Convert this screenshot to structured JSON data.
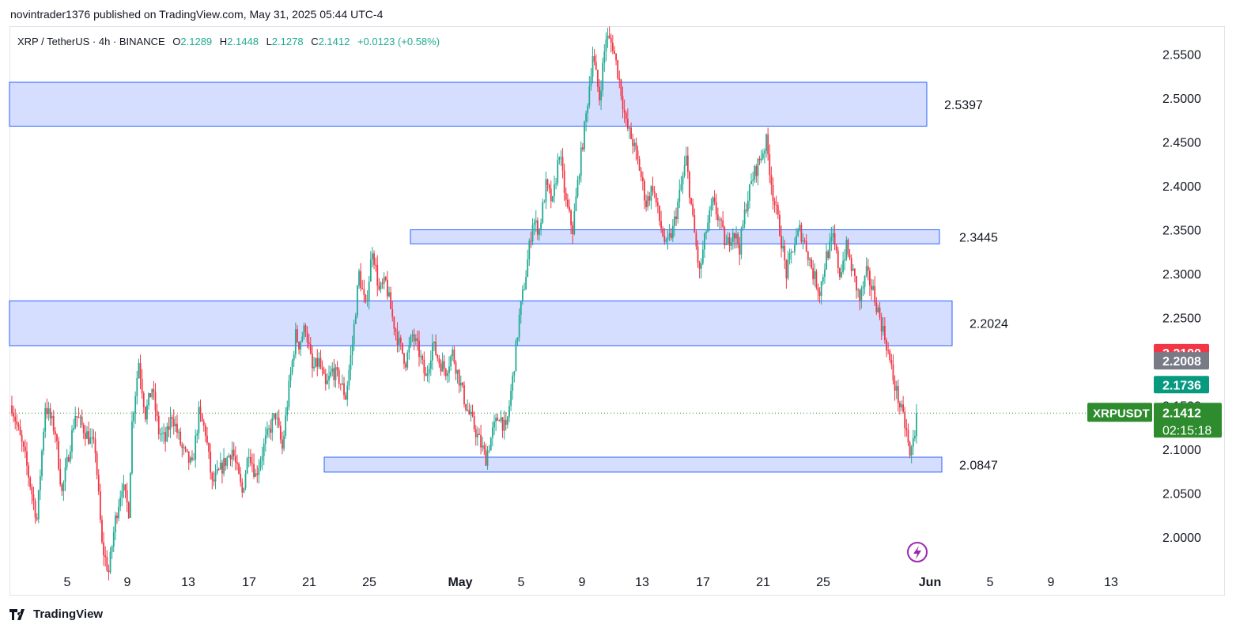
{
  "header": {
    "published": "novintrader1376 published on TradingView.com, May 31, 2025 05:44 UTC-4"
  },
  "symbol_bar": {
    "symbol": "XRP / TetherUS · 4h · BINANCE",
    "o_label": "O",
    "o_value": "2.1289",
    "h_label": "H",
    "h_value": "2.1448",
    "l_label": "L",
    "l_value": "2.1278",
    "c_label": "C",
    "c_value": "2.1412",
    "change": "+0.0123 (+0.58%)"
  },
  "footer": {
    "brand": "TradingView"
  },
  "colors": {
    "up": "#22ab94",
    "down": "#f23645",
    "zone_fill": "#d6deff",
    "zone_border": "#2962ff",
    "last_price": "#2e8b2e"
  },
  "chart_data": {
    "type": "candlestick",
    "symbol": "XRPUSDT",
    "timeframe": "4h",
    "y_axis": {
      "ticks": [
        "2.5500",
        "2.5000",
        "2.4500",
        "2.4000",
        "2.3500",
        "2.3000",
        "2.2500",
        "2.2000",
        "2.1500",
        "2.1000",
        "2.0500",
        "2.0000"
      ],
      "tick_values": [
        2.55,
        2.5,
        2.45,
        2.4,
        2.35,
        2.3,
        2.25,
        2.2,
        2.15,
        2.1,
        2.05,
        2.0
      ],
      "range": [
        1.97,
        2.58
      ]
    },
    "x_axis": {
      "labels": [
        "5",
        "9",
        "13",
        "17",
        "21",
        "25",
        "May",
        "5",
        "9",
        "13",
        "17",
        "21",
        "25",
        "Jun",
        "5",
        "9",
        "13"
      ]
    },
    "zones": [
      {
        "label": "2.5397",
        "top": 2.518,
        "bottom": 2.468
      },
      {
        "label": "2.3445",
        "top": 2.35,
        "bottom": 2.334
      },
      {
        "label": "2.2024",
        "top": 2.269,
        "bottom": 2.218
      },
      {
        "label": "2.0847",
        "top": 2.091,
        "bottom": 2.074
      }
    ],
    "price_tags": [
      {
        "text": "2.2100",
        "value": 2.21,
        "color": "#f23645"
      },
      {
        "text": "2.2008",
        "value": 2.2008,
        "color": "#787b86"
      },
      {
        "text": "2.1736",
        "value": 2.1736,
        "color": "#089981"
      }
    ],
    "last_price": {
      "symbol_label": "XRPUSDT",
      "price": "2.1412",
      "value": 2.1412,
      "countdown": "02:15:18"
    },
    "path": [
      [
        0,
        2.15
      ],
      [
        8,
        2.09
      ],
      [
        15,
        2.02
      ],
      [
        20,
        2.15
      ],
      [
        26,
        2.12
      ],
      [
        30,
        2.05
      ],
      [
        38,
        2.14
      ],
      [
        44,
        2.12
      ],
      [
        50,
        2.1
      ],
      [
        54,
        1.99
      ],
      [
        58,
        1.96
      ],
      [
        62,
        2.02
      ],
      [
        66,
        2.06
      ],
      [
        70,
        2.03
      ],
      [
        72,
        2.13
      ],
      [
        76,
        2.2
      ],
      [
        80,
        2.14
      ],
      [
        84,
        2.17
      ],
      [
        88,
        2.12
      ],
      [
        92,
        2.11
      ],
      [
        96,
        2.14
      ],
      [
        102,
        2.1
      ],
      [
        108,
        2.08
      ],
      [
        112,
        2.14
      ],
      [
        116,
        2.12
      ],
      [
        120,
        2.06
      ],
      [
        126,
        2.08
      ],
      [
        132,
        2.1
      ],
      [
        138,
        2.05
      ],
      [
        142,
        2.1
      ],
      [
        146,
        2.07
      ],
      [
        152,
        2.11
      ],
      [
        158,
        2.14
      ],
      [
        162,
        2.1
      ],
      [
        166,
        2.17
      ],
      [
        170,
        2.23
      ],
      [
        172,
        2.22
      ],
      [
        176,
        2.24
      ],
      [
        180,
        2.19
      ],
      [
        184,
        2.2
      ],
      [
        188,
        2.17
      ],
      [
        192,
        2.19
      ],
      [
        196,
        2.18
      ],
      [
        200,
        2.16
      ],
      [
        204,
        2.22
      ],
      [
        208,
        2.3
      ],
      [
        212,
        2.26
      ],
      [
        216,
        2.33
      ],
      [
        220,
        2.28
      ],
      [
        224,
        2.29
      ],
      [
        228,
        2.25
      ],
      [
        232,
        2.22
      ],
      [
        236,
        2.2
      ],
      [
        240,
        2.23
      ],
      [
        244,
        2.21
      ],
      [
        248,
        2.18
      ],
      [
        252,
        2.22
      ],
      [
        256,
        2.2
      ],
      [
        260,
        2.19
      ],
      [
        264,
        2.21
      ],
      [
        268,
        2.18
      ],
      [
        272,
        2.15
      ],
      [
        276,
        2.13
      ],
      [
        280,
        2.11
      ],
      [
        284,
        2.09
      ],
      [
        288,
        2.12
      ],
      [
        292,
        2.14
      ],
      [
        296,
        2.12
      ],
      [
        300,
        2.18
      ],
      [
        304,
        2.25
      ],
      [
        308,
        2.3
      ],
      [
        312,
        2.36
      ],
      [
        316,
        2.35
      ],
      [
        320,
        2.4
      ],
      [
        324,
        2.38
      ],
      [
        328,
        2.44
      ],
      [
        332,
        2.38
      ],
      [
        336,
        2.35
      ],
      [
        340,
        2.42
      ],
      [
        344,
        2.48
      ],
      [
        348,
        2.55
      ],
      [
        352,
        2.5
      ],
      [
        356,
        2.57
      ],
      [
        360,
        2.56
      ],
      [
        364,
        2.52
      ],
      [
        368,
        2.47
      ],
      [
        372,
        2.45
      ],
      [
        376,
        2.42
      ],
      [
        380,
        2.38
      ],
      [
        384,
        2.4
      ],
      [
        388,
        2.36
      ],
      [
        392,
        2.33
      ],
      [
        396,
        2.35
      ],
      [
        400,
        2.39
      ],
      [
        404,
        2.43
      ],
      [
        408,
        2.36
      ],
      [
        412,
        2.3
      ],
      [
        416,
        2.35
      ],
      [
        420,
        2.38
      ],
      [
        424,
        2.36
      ],
      [
        428,
        2.33
      ],
      [
        432,
        2.35
      ],
      [
        436,
        2.33
      ],
      [
        440,
        2.38
      ],
      [
        444,
        2.41
      ],
      [
        448,
        2.43
      ],
      [
        452,
        2.45
      ],
      [
        456,
        2.39
      ],
      [
        460,
        2.35
      ],
      [
        464,
        2.3
      ],
      [
        468,
        2.33
      ],
      [
        472,
        2.35
      ],
      [
        476,
        2.33
      ],
      [
        480,
        2.3
      ],
      [
        484,
        2.28
      ],
      [
        488,
        2.32
      ],
      [
        492,
        2.34
      ],
      [
        496,
        2.3
      ],
      [
        500,
        2.33
      ],
      [
        504,
        2.3
      ],
      [
        508,
        2.27
      ],
      [
        512,
        2.3
      ],
      [
        516,
        2.28
      ],
      [
        520,
        2.25
      ],
      [
        524,
        2.22
      ],
      [
        528,
        2.18
      ],
      [
        532,
        2.15
      ],
      [
        536,
        2.12
      ],
      [
        538,
        2.09
      ],
      [
        542,
        2.13
      ]
    ],
    "total_candles": 543
  }
}
